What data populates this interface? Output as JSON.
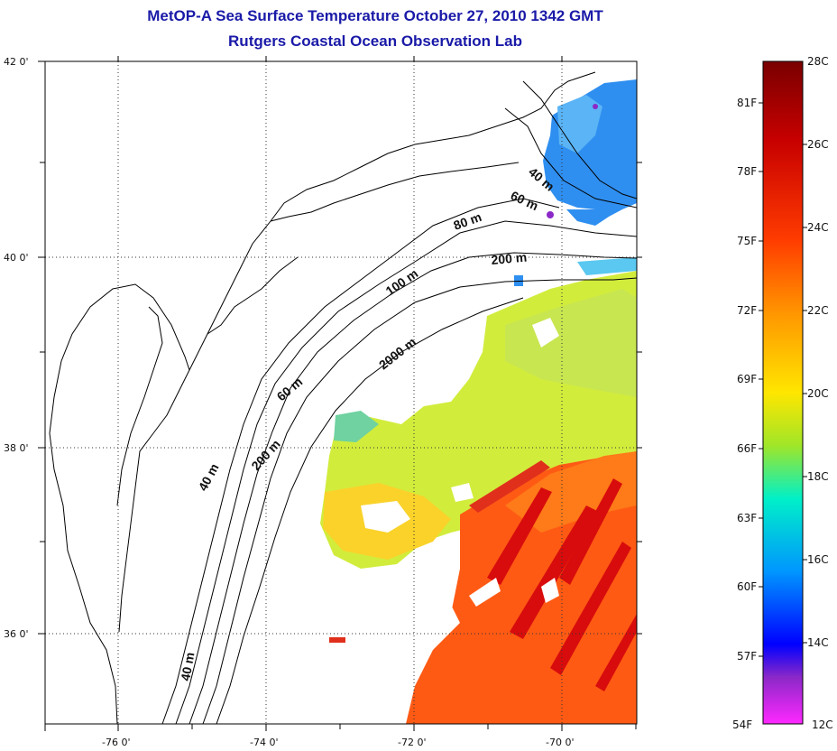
{
  "title": {
    "line1": "MetOP-A Sea Surface Temperature October 27, 2010 1342 GMT",
    "line2": "Rutgers Coastal Ocean Observation Lab"
  },
  "axes": {
    "lat_labels": [
      "42 0'",
      "40 0'",
      "38 0'",
      "36 0'"
    ],
    "lon_labels": [
      "-76 0'",
      "-74 0'",
      "-72 0'",
      "-70 0'"
    ]
  },
  "contour_labels": [
    "40 m",
    "60 m",
    "80 m",
    "200 m",
    "100 m",
    "2000 m",
    "60 m",
    "40 m",
    "200 m",
    "40 m"
  ],
  "colorbar": {
    "celsius": [
      "28C",
      "26C",
      "24C",
      "22C",
      "20C",
      "18C",
      "16C",
      "14C",
      "12C"
    ],
    "fahrenheit": [
      "81F",
      "78F",
      "75F",
      "72F",
      "69F",
      "66F",
      "63F",
      "60F",
      "57F",
      "54F"
    ],
    "colors": [
      "#7a0000",
      "#c80000",
      "#ff3c00",
      "#ff9600",
      "#ffe600",
      "#a0e628",
      "#00f0c8",
      "#0096ff",
      "#0000ff",
      "#8c28c8",
      "#ff28ff"
    ]
  },
  "sst_colors": {
    "cold_water": "#2f8ff0",
    "mid_water": "#d2ec3c",
    "warm_water": "#ff5a14",
    "hot_water": "#d80c0c"
  }
}
